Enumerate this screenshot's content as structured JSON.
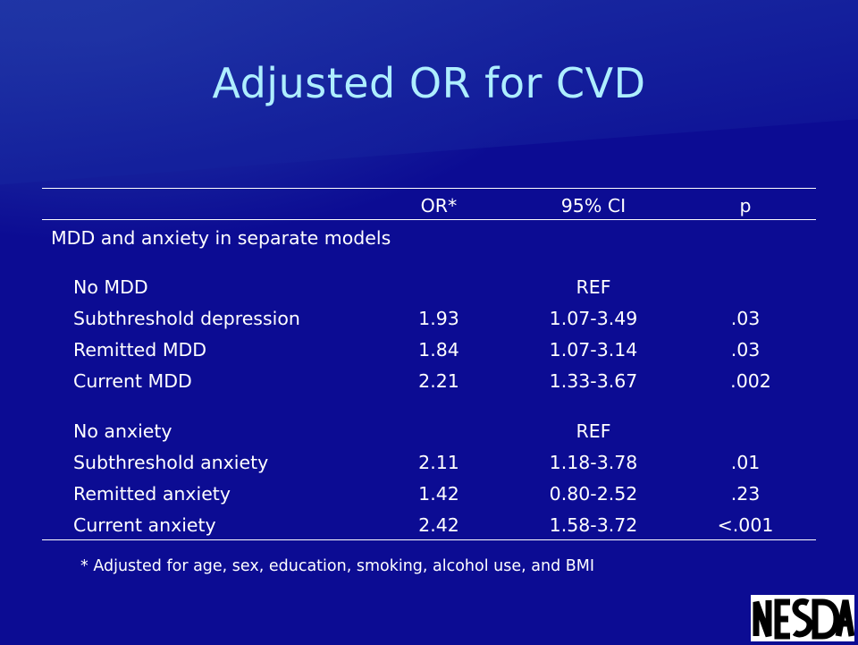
{
  "title": "Adjusted OR for CVD",
  "table": {
    "headers": {
      "or": "OR*",
      "ci": "95% CI",
      "p": "p"
    },
    "section_label": "MDD and anxiety in separate models",
    "groups": [
      {
        "rows": [
          {
            "label": "No MDD",
            "or": "",
            "ci": "REF",
            "p": ""
          },
          {
            "label": "Subthreshold depression",
            "or": "1.93",
            "ci": "1.07-3.49",
            "p": ".03"
          },
          {
            "label": "Remitted MDD",
            "or": "1.84",
            "ci": "1.07-3.14",
            "p": ".03"
          },
          {
            "label": "Current MDD",
            "or": "2.21",
            "ci": "1.33-3.67",
            "p": ".002"
          }
        ]
      },
      {
        "rows": [
          {
            "label": "No anxiety",
            "or": "",
            "ci": "REF",
            "p": ""
          },
          {
            "label": "Subthreshold anxiety",
            "or": "2.11",
            "ci": "1.18-3.78",
            "p": ".01"
          },
          {
            "label": "Remitted anxiety",
            "or": "1.42",
            "ci": "0.80-2.52",
            "p": ".23"
          },
          {
            "label": "Current anxiety",
            "or": "2.42",
            "ci": "1.58-3.72",
            "p": "<.001"
          }
        ]
      }
    ]
  },
  "footnote": "* Adjusted for age, sex, education, smoking, alcohol use, and BMI",
  "logo_text": "NESDA"
}
